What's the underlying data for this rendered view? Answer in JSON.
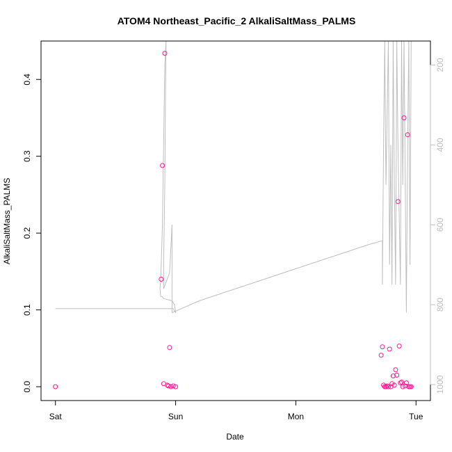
{
  "chart_data": {
    "type": "scatter",
    "title": "ATOM4 Northeast_Pacific_2 AlkaliSaltMass_PALMS",
    "xlabel": "Date",
    "ylabel": "AlkaliSaltMass_PALMS",
    "x_ticks": [
      {
        "value": 0,
        "label": "Sat"
      },
      {
        "value": 1,
        "label": "Sun"
      },
      {
        "value": 2,
        "label": "Mon"
      },
      {
        "value": 3,
        "label": "Tue"
      }
    ],
    "xlim": [
      -0.12,
      3.12
    ],
    "ylim": [
      -0.018,
      0.45
    ],
    "y_ticks": [
      0.0,
      0.1,
      0.2,
      0.3,
      0.4
    ],
    "y_tick_labels": [
      "0.0",
      "0.1",
      "0.2",
      "0.3",
      "0.4"
    ],
    "y2_lim": [
      1040,
      140
    ],
    "y2_ticks": [
      200,
      400,
      600,
      800,
      1000
    ],
    "y2_tick_labels": [
      "200",
      "400",
      "600",
      "800",
      "1000"
    ],
    "colors": {
      "points": "#ff1493",
      "track": "#bebebe",
      "axis": "#000000"
    },
    "series": [
      {
        "marker": "circle-open",
        "x": [
          0.0,
          0.88,
          0.89,
          0.9,
          0.91,
          0.93,
          0.94,
          0.95,
          0.96,
          0.98,
          1.0,
          2.71,
          2.72,
          2.73,
          2.74,
          2.75,
          2.76,
          2.77,
          2.78,
          2.79,
          2.8,
          2.81,
          2.82,
          2.83,
          2.84,
          2.85,
          2.86,
          2.87,
          2.88,
          2.89,
          2.9,
          2.91,
          2.92,
          2.93,
          2.94,
          2.95,
          2.96
        ],
        "y": [
          0.0,
          0.14,
          0.288,
          0.004,
          0.434,
          0.002,
          0.001,
          0.051,
          0.0,
          0.001,
          0.0,
          0.041,
          0.052,
          0.002,
          0.0,
          0.0,
          0.001,
          0.0,
          0.049,
          0.0,
          0.004,
          0.014,
          0.002,
          0.022,
          0.015,
          0.241,
          0.053,
          0.005,
          0.006,
          0.0,
          0.35,
          0.001,
          0.005,
          0.328,
          0.0,
          0.0,
          0.0
        ]
      },
      {
        "axis": "right",
        "x": [
          0.0,
          0.4,
          0.7,
          0.98,
          1.0,
          0.99,
          0.97,
          0.9,
          0.89,
          0.885,
          0.88,
          0.875,
          0.87,
          0.875,
          0.88,
          0.89,
          0.9,
          0.91,
          0.92,
          0.915,
          0.91,
          0.9,
          0.9,
          0.95,
          0.97,
          0.97,
          1.2,
          1.6,
          2.0,
          2.4,
          2.6,
          2.72,
          2.72,
          2.73,
          2.74,
          2.75,
          2.77,
          2.78,
          2.79,
          2.8,
          2.81,
          2.82,
          2.83,
          2.84,
          2.85,
          2.87,
          2.88,
          2.89,
          2.9,
          2.92,
          2.93,
          2.94,
          2.95,
          2.96
        ],
        "y": [
          810,
          810,
          810,
          810,
          820,
          800,
          790,
          785,
          780,
          780,
          780,
          778,
          760,
          740,
          700,
          600,
          400,
          200,
          140,
          300,
          500,
          700,
          760,
          720,
          600,
          820,
          790,
          750,
          710,
          670,
          650,
          640,
          750,
          400,
          140,
          500,
          140,
          700,
          400,
          750,
          140,
          500,
          750,
          140,
          400,
          750,
          140,
          500,
          140,
          820,
          400,
          140,
          700,
          140
        ]
      }
    ],
    "grid": false,
    "legend": false
  }
}
